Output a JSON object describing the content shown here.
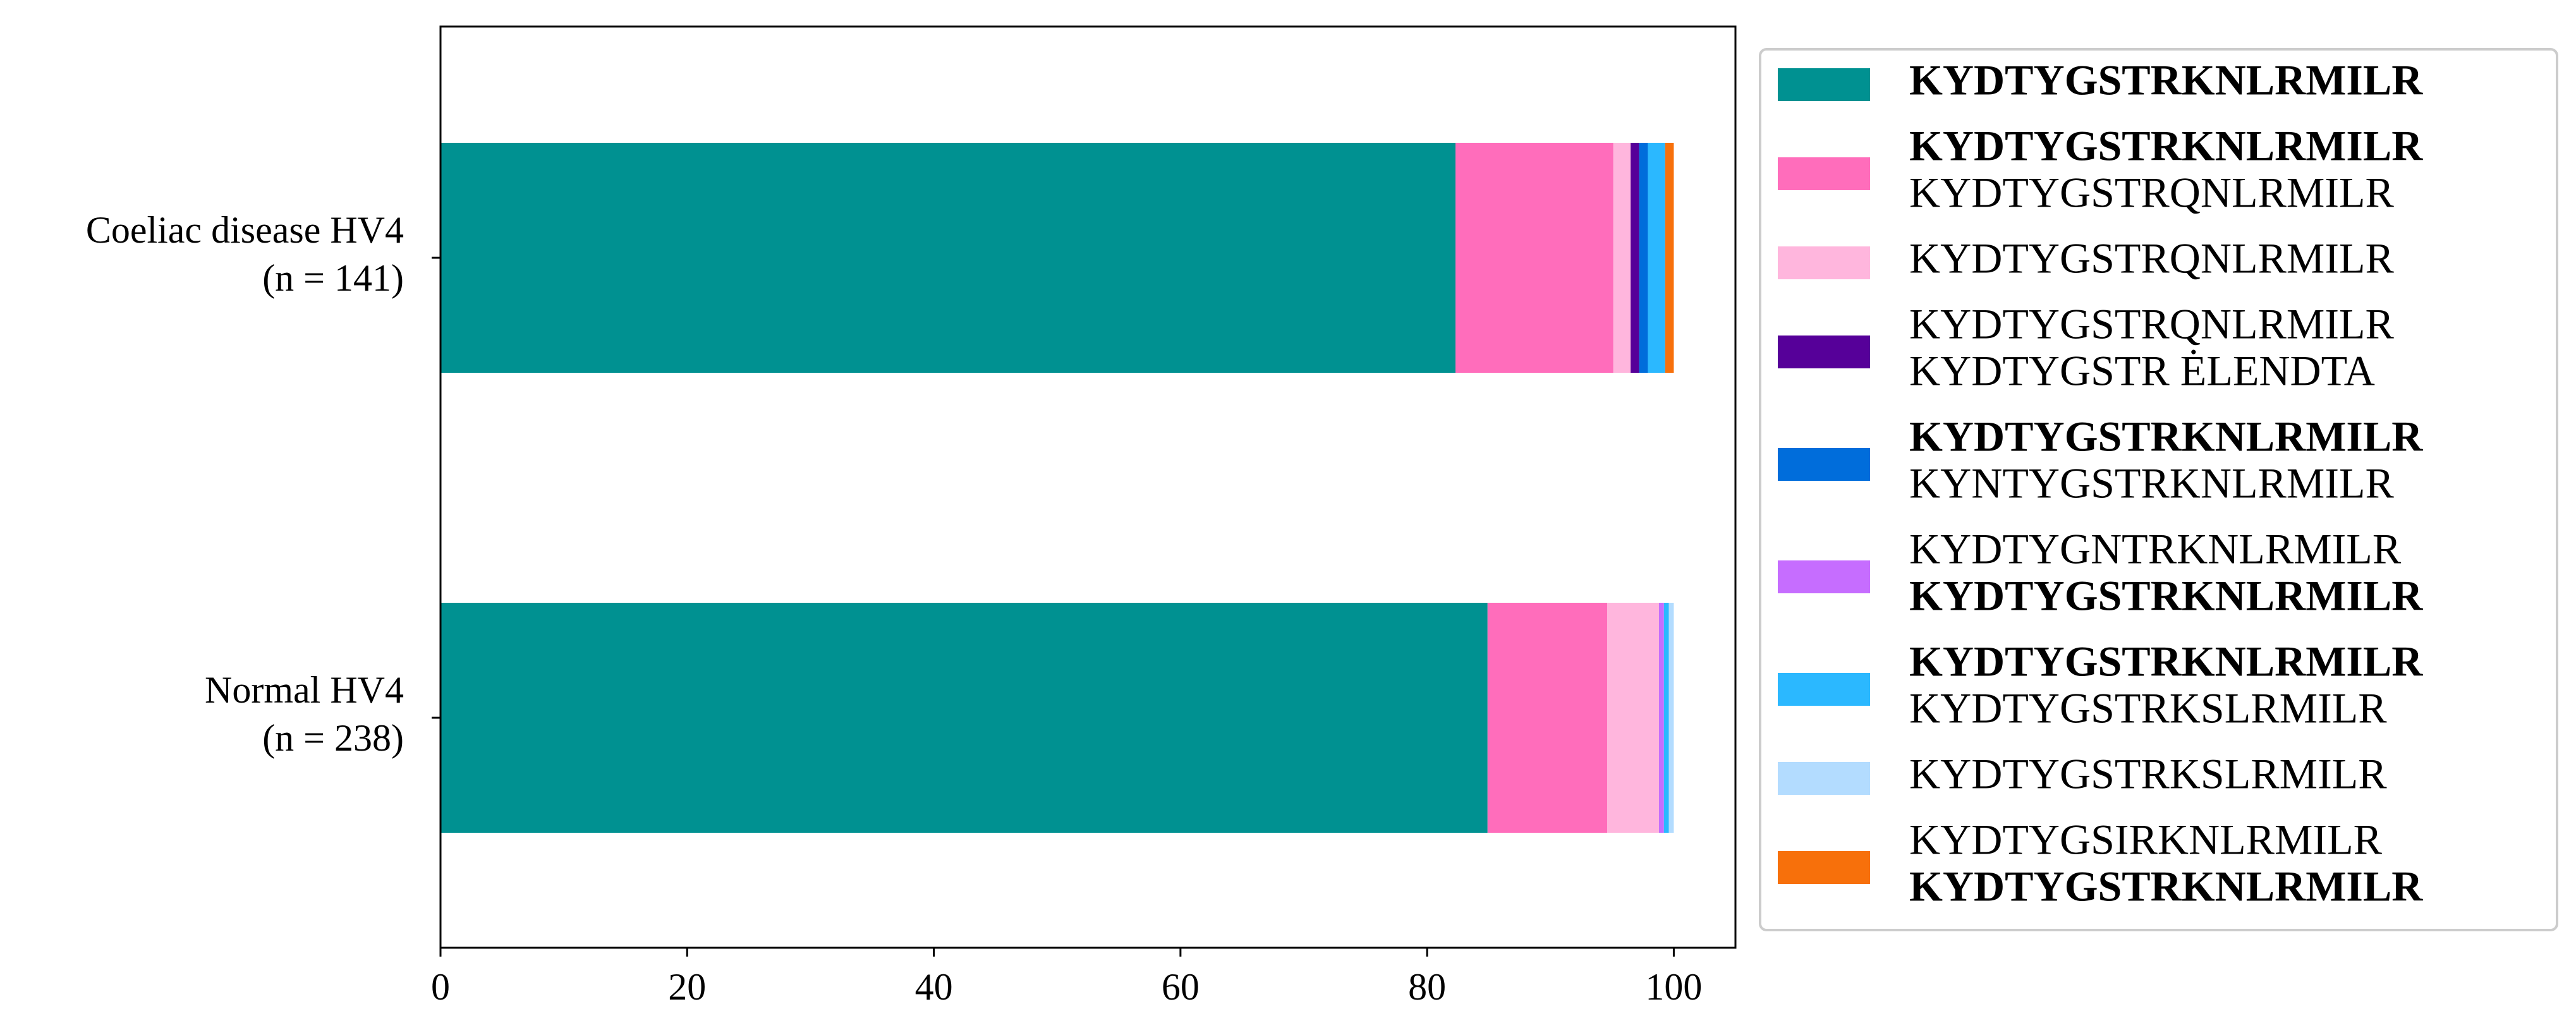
{
  "chart_data": {
    "type": "stacked-barh",
    "categories": [
      [
        "Coeliac disease HV4",
        "(n = 141)"
      ],
      [
        "Normal HV4",
        "(n = 238)"
      ]
    ],
    "series": [
      {
        "name": [
          "KYDTYGSTRKNLRMILR"
        ],
        "bold": [
          true
        ],
        "color": "#009191",
        "values": [
          82.3,
          84.9
        ]
      },
      {
        "name": [
          "KYDTYGSTRKNLRMILR",
          "KYDTYGSTRQNLRMILR"
        ],
        "bold": [
          true,
          false
        ],
        "color": "#ff6dbb",
        "values": [
          12.8,
          9.7
        ]
      },
      {
        "name": [
          "KYDTYGSTRQNLRMILR"
        ],
        "bold": [
          false
        ],
        "color": "#ffb6dd",
        "values": [
          1.4,
          4.2
        ]
      },
      {
        "name": [
          "KYDTYGSTRQNLRMILR",
          "KYDTYGSTR ĖLENDTA"
        ],
        "bold": [
          false,
          false
        ],
        "color": "#560099",
        "values": [
          0.7,
          0
        ]
      },
      {
        "name": [
          "KYDTYGSTRKNLRMILR",
          "KYNTYGSTRKNLRMILR"
        ],
        "bold": [
          true,
          false
        ],
        "color": "#006ddb",
        "values": [
          0.7,
          0
        ]
      },
      {
        "name": [
          "KYDTYGNTRKNLRMILR",
          "KYDTYGSTRKNLRMILR"
        ],
        "bold": [
          false,
          true
        ],
        "color": "#c66dff",
        "values": [
          0,
          0.4
        ]
      },
      {
        "name": [
          "KYDTYGSTRKNLRMILR",
          "KYDTYGSTRKSLRMILR"
        ],
        "bold": [
          true,
          false
        ],
        "color": "#2bb8ff",
        "values": [
          1.4,
          0.4
        ]
      },
      {
        "name": [
          "KYDTYGSTRKSLRMILR"
        ],
        "bold": [
          false
        ],
        "color": "#b3dcff",
        "values": [
          0,
          0.4
        ]
      },
      {
        "name": [
          "KYDTYGSIRKNLRMILR",
          "KYDTYGSTRKNLRMILR"
        ],
        "bold": [
          false,
          true
        ],
        "color": "#f7700b",
        "values": [
          0.7,
          0
        ]
      }
    ],
    "xlim": [
      0,
      105
    ],
    "xticks": [
      0,
      20,
      40,
      60,
      80,
      100
    ]
  }
}
